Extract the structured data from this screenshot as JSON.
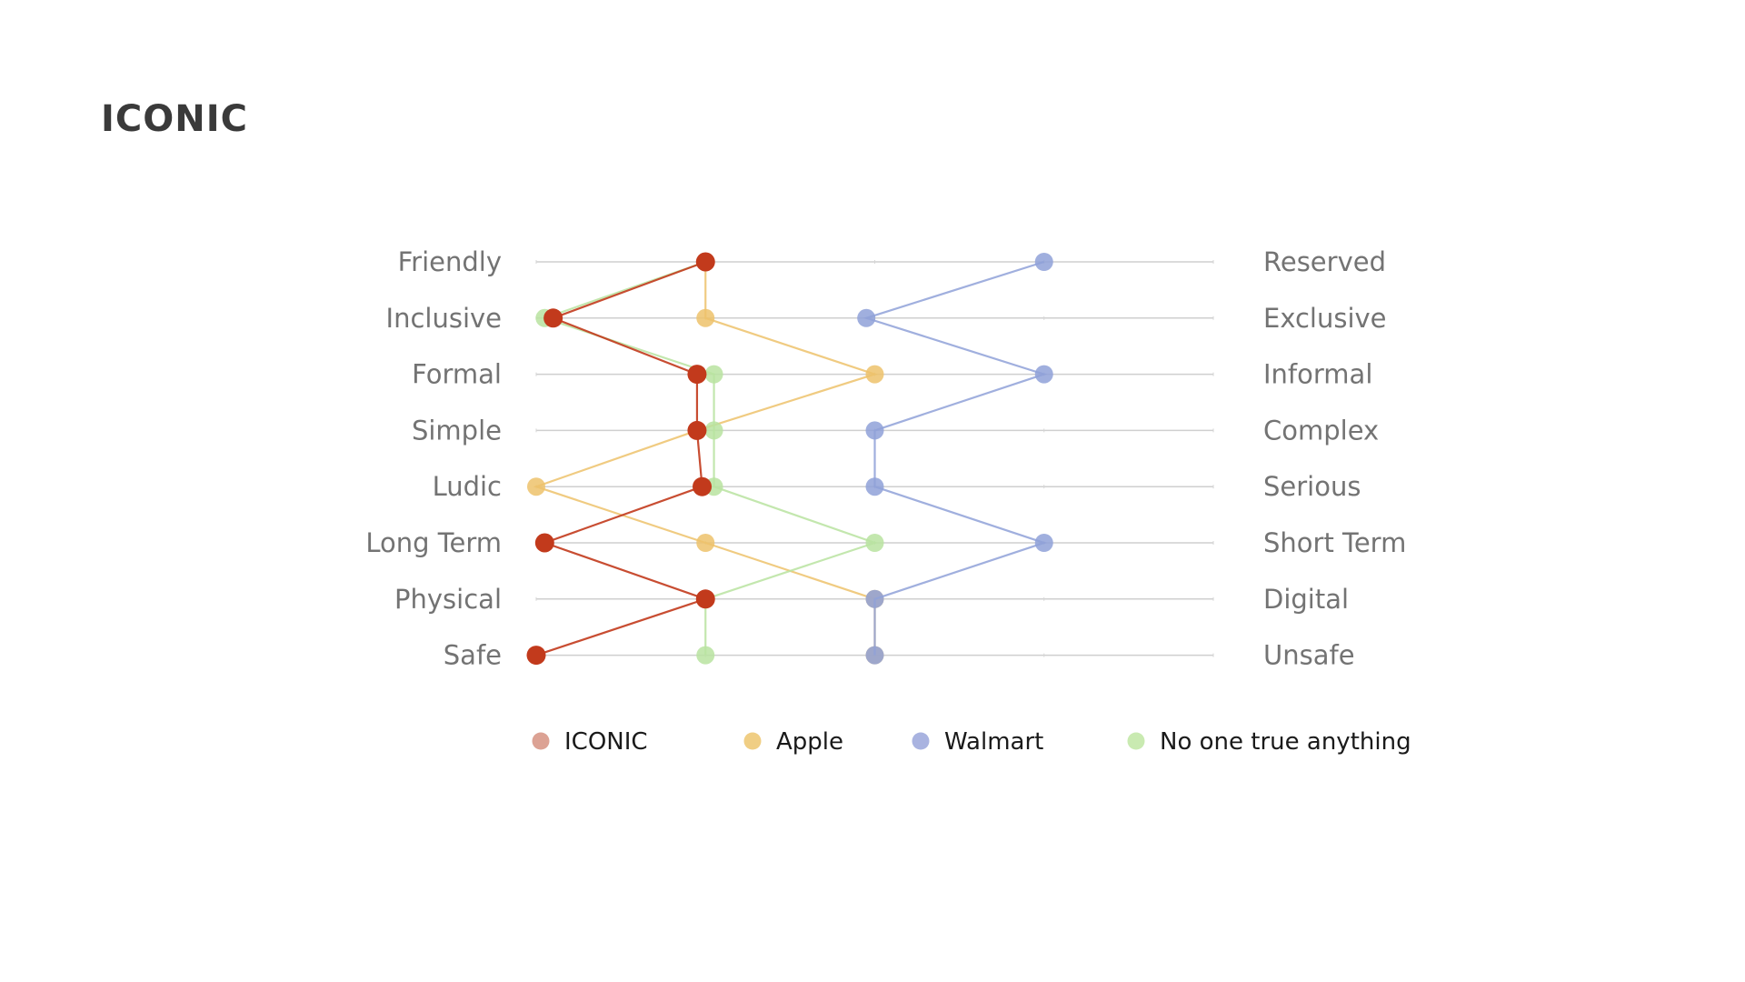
{
  "page": {
    "title": "ICONIC"
  },
  "chart_data": {
    "type": "line",
    "title": "",
    "xlabel": "",
    "ylabel": "",
    "xlim": [
      0,
      4
    ],
    "grid": true,
    "legend_position": "bottom",
    "left_labels": [
      "Friendly",
      "Inclusive",
      "Formal",
      "Simple",
      "Ludic",
      "Long Term",
      "Physical",
      "Safe"
    ],
    "right_labels": [
      "Reserved",
      "Exclusive",
      "Informal",
      "Complex",
      "Serious",
      "Short Term",
      "Digital",
      "Unsafe"
    ],
    "series": [
      {
        "name": "Apple",
        "color": "#EDC26B",
        "legend_color": "#F0CE84",
        "values": [
          1,
          1,
          2,
          0.95,
          0,
          1,
          2,
          2
        ]
      },
      {
        "name": "Walmart",
        "color": "#8FA1D8",
        "legend_color": "#A9B3E0",
        "values": [
          3,
          1.95,
          3,
          2,
          2,
          3,
          2,
          2
        ]
      },
      {
        "name": "No one true anything",
        "color": "#B9E3A0",
        "legend_color": "#C9EAB1",
        "values": [
          1,
          0.05,
          1.05,
          1.05,
          1.05,
          2,
          1,
          1
        ]
      },
      {
        "name": "ICONIC",
        "color": "#C23A1C",
        "legend_color": "#DCA294",
        "values": [
          1,
          0.1,
          0.95,
          0.95,
          0.98,
          0.05,
          1,
          0
        ]
      }
    ],
    "legend_order": [
      "ICONIC",
      "Apple",
      "Walmart",
      "No one true anything"
    ]
  }
}
